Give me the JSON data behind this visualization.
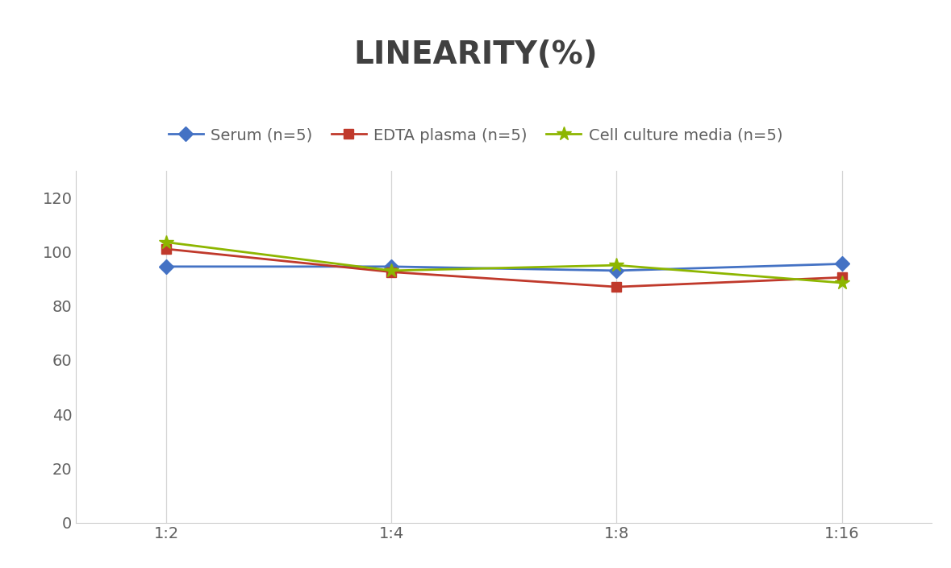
{
  "title": "LINEARITY(%)",
  "x_labels": [
    "1:2",
    "1:4",
    "1:8",
    "1:16"
  ],
  "x_positions": [
    0,
    1,
    2,
    3
  ],
  "series": [
    {
      "label": "Serum (n=5)",
      "values": [
        94.5,
        94.5,
        93.0,
        95.5
      ],
      "color": "#4472C4",
      "marker": "D",
      "linewidth": 2.0
    },
    {
      "label": "EDTA plasma (n=5)",
      "values": [
        101.0,
        92.5,
        87.0,
        90.5
      ],
      "color": "#C0392B",
      "marker": "s",
      "linewidth": 2.0
    },
    {
      "label": "Cell culture media (n=5)",
      "values": [
        103.5,
        93.0,
        95.0,
        88.5
      ],
      "color": "#8DB600",
      "marker": "*",
      "linewidth": 2.0
    }
  ],
  "ylim": [
    0,
    130
  ],
  "yticks": [
    0,
    20,
    40,
    60,
    80,
    100,
    120
  ],
  "background_color": "#ffffff",
  "grid_color": "#d5d5d5",
  "title_fontsize": 28,
  "legend_fontsize": 14,
  "tick_fontsize": 14,
  "tick_color": "#606060"
}
